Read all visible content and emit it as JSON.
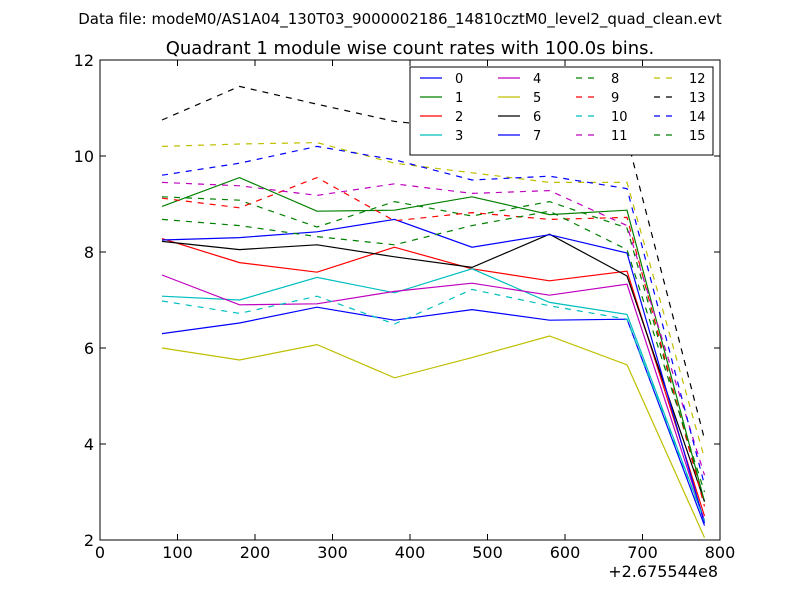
{
  "header": "Data file: modeM0/AS1A04_130T03_9000002186_14810cztM0_level2_quad_clean.evt",
  "chart_data": {
    "type": "line",
    "title": "Quadrant 1 module wise count rates with 100.0s bins.",
    "xlabel": "",
    "ylabel": "",
    "x_offset_label": "+2.675544e8",
    "xlim": [
      0,
      800
    ],
    "ylim": [
      2,
      12
    ],
    "x_ticks": [
      0,
      100,
      200,
      300,
      400,
      500,
      600,
      700,
      800
    ],
    "y_ticks": [
      2,
      4,
      6,
      8,
      10,
      12
    ],
    "grid": false,
    "legend_position": "top-right",
    "x": [
      80,
      180,
      280,
      380,
      480,
      580,
      680,
      780
    ],
    "series": [
      {
        "name": "0",
        "color": "#0000ff",
        "dash": "solid",
        "values": [
          6.3,
          6.52,
          6.85,
          6.58,
          6.8,
          6.58,
          6.6,
          2.3
        ]
      },
      {
        "name": "1",
        "color": "#008000",
        "dash": "solid",
        "values": [
          8.95,
          9.55,
          8.85,
          8.87,
          9.15,
          8.78,
          8.87,
          2.8
        ]
      },
      {
        "name": "2",
        "color": "#ff0000",
        "dash": "solid",
        "values": [
          8.28,
          7.78,
          7.58,
          8.1,
          7.65,
          7.4,
          7.6,
          2.5
        ]
      },
      {
        "name": "3",
        "color": "#00bfbf",
        "dash": "solid",
        "values": [
          7.08,
          7.0,
          7.47,
          7.15,
          7.65,
          6.95,
          6.7,
          2.4
        ]
      },
      {
        "name": "4",
        "color": "#bf00bf",
        "dash": "solid",
        "values": [
          7.52,
          6.9,
          6.92,
          7.18,
          7.35,
          7.1,
          7.33,
          2.4
        ]
      },
      {
        "name": "5",
        "color": "#bfbf00",
        "dash": "solid",
        "values": [
          6.0,
          5.75,
          6.07,
          5.38,
          5.8,
          6.25,
          5.65,
          2.05
        ]
      },
      {
        "name": "6",
        "color": "#000000",
        "dash": "solid",
        "values": [
          8.22,
          8.05,
          8.15,
          7.9,
          7.68,
          8.37,
          7.5,
          2.8
        ]
      },
      {
        "name": "7",
        "color": "#0000ff",
        "dash": "solid",
        "values": [
          8.25,
          8.3,
          8.42,
          8.68,
          8.1,
          8.36,
          7.98,
          2.35
        ]
      },
      {
        "name": "8",
        "color": "#008000",
        "dash": "dashed",
        "values": [
          9.15,
          9.08,
          8.52,
          9.05,
          8.75,
          9.05,
          8.5,
          2.8
        ]
      },
      {
        "name": "9",
        "color": "#ff0000",
        "dash": "dashed",
        "values": [
          9.12,
          8.92,
          9.55,
          8.65,
          8.82,
          8.68,
          8.72,
          2.7
        ]
      },
      {
        "name": "10",
        "color": "#00bfbf",
        "dash": "dashed",
        "values": [
          6.98,
          6.72,
          7.08,
          6.5,
          7.22,
          6.88,
          6.6,
          2.4
        ]
      },
      {
        "name": "11",
        "color": "#bf00bf",
        "dash": "dashed",
        "values": [
          9.45,
          9.38,
          9.18,
          9.42,
          9.22,
          9.28,
          8.55,
          3.35
        ]
      },
      {
        "name": "12",
        "color": "#bfbf00",
        "dash": "dashed",
        "values": [
          10.2,
          10.25,
          10.28,
          9.85,
          9.65,
          9.45,
          9.45,
          3.7
        ]
      },
      {
        "name": "13",
        "color": "#000000",
        "dash": "dashed",
        "values": [
          10.75,
          11.45,
          11.08,
          10.72,
          10.55,
          10.2,
          10.38,
          4.1
        ]
      },
      {
        "name": "14",
        "color": "#0000ff",
        "dash": "dashed",
        "values": [
          9.6,
          9.85,
          10.2,
          9.92,
          9.5,
          9.58,
          9.32,
          3.15
        ]
      },
      {
        "name": "15",
        "color": "#008000",
        "dash": "dashed",
        "values": [
          8.68,
          8.55,
          8.32,
          8.15,
          8.55,
          8.85,
          8.05,
          3.0
        ]
      }
    ]
  }
}
